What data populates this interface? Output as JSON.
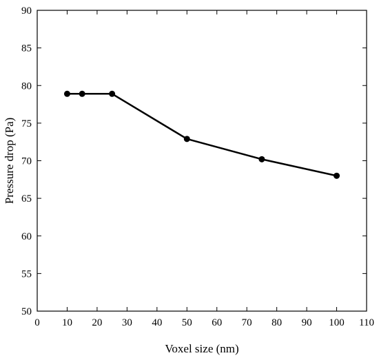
{
  "chart_data": {
    "type": "line",
    "title": "",
    "xlabel": "Voxel size (nm)",
    "ylabel": "Pressure drop (Pa)",
    "xlim": [
      0,
      110
    ],
    "ylim": [
      50,
      90
    ],
    "xticks": [
      0,
      10,
      20,
      30,
      40,
      50,
      60,
      70,
      80,
      90,
      100,
      110
    ],
    "yticks": [
      50,
      55,
      60,
      65,
      70,
      75,
      80,
      85,
      90
    ],
    "grid": false,
    "legend": "none",
    "series": [
      {
        "x": [
          10,
          15,
          25,
          50,
          75,
          100
        ],
        "y": [
          78.9,
          78.9,
          78.9,
          72.9,
          70.2,
          68.0
        ],
        "color": "#000000",
        "marker": "circle"
      }
    ]
  }
}
